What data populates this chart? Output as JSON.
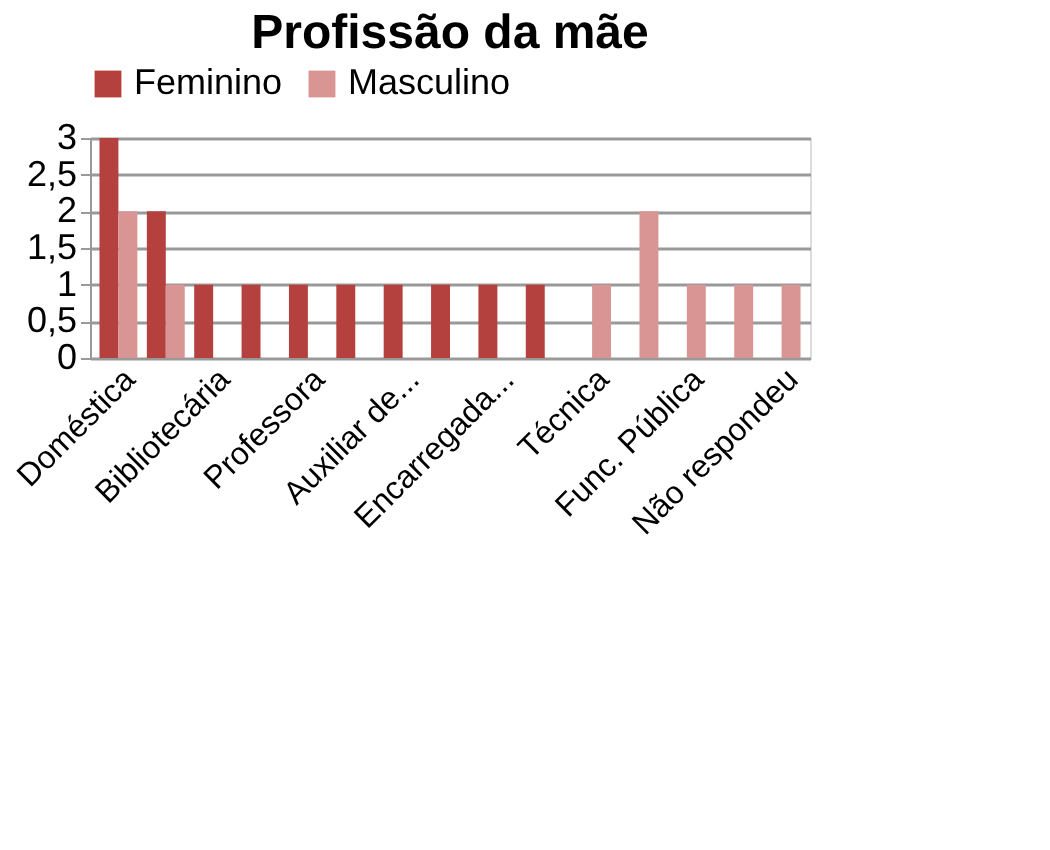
{
  "chart_data": {
    "type": "bar",
    "title": "Profissão da mãe",
    "categories": [
      "Doméstica",
      null,
      "Bibliotecária",
      null,
      "Professora",
      null,
      "Auxiliar de...",
      null,
      "Encarregada...",
      null,
      "Técnica",
      null,
      "Func. Pública",
      null,
      "Não respondeu"
    ],
    "series": [
      {
        "name": "Feminino",
        "color": "#b5413f",
        "values": [
          3,
          2,
          1,
          1,
          1,
          1,
          1,
          1,
          1,
          1,
          0,
          0,
          0,
          0,
          0
        ]
      },
      {
        "name": "Masculino",
        "color": "#d99594",
        "values": [
          2,
          1,
          0,
          0,
          0,
          0,
          0,
          0,
          0,
          0,
          1,
          2,
          1,
          1,
          1
        ]
      }
    ],
    "ylim": [
      0,
      3
    ],
    "yticks": [
      0,
      {
        "value": 0.5,
        "label": "0,5"
      },
      1,
      {
        "value": 1.5,
        "label": "1,5"
      },
      2,
      {
        "value": 2.5,
        "label": "2,5"
      },
      3
    ],
    "grid": "y",
    "legend": "top"
  }
}
